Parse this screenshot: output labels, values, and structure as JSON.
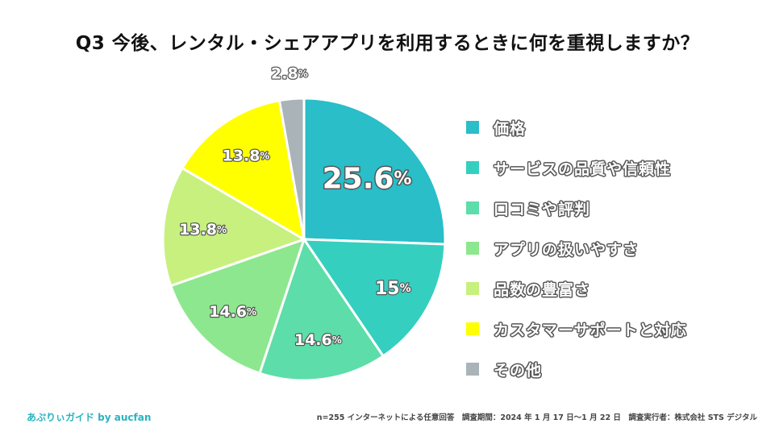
{
  "header": {
    "title": "Q3 今後、レンタル・シェアアプリを利用するときに何を重視しますか？"
  },
  "chart_data": {
    "type": "pie",
    "title": "Q3 今後、レンタル・シェアアプリを利用するときに何を重視しますか？",
    "unit": "%",
    "start": "12 o'clock, clockwise",
    "categories": [
      "価格",
      "サービスの品質や信頼性",
      "口コミや評判",
      "アプリの扱いやすさ",
      "品数の豊富さ",
      "カスタマーサポートと対応",
      "その他"
    ],
    "values": [
      25.6,
      15,
      14.6,
      14.6,
      13.8,
      13.8,
      2.8
    ],
    "value_labels": [
      "25.6",
      "15",
      "14.6",
      "14.6",
      "13.8",
      "13.8",
      "2.8"
    ],
    "colors": [
      "#29bec8",
      "#35cfc0",
      "#5ddda9",
      "#8de78e",
      "#c7f07f",
      "#ffff00",
      "#aab4b8"
    ],
    "legend_position": "right"
  },
  "footer": {
    "brand": "あぷりぃガイド by aucfan",
    "note": "n=255 インターネットによる任意回答　調査期間：2024 年 1 月 17 日～1 月 22 日　調査実行者：株式会社 STS デジタル"
  }
}
